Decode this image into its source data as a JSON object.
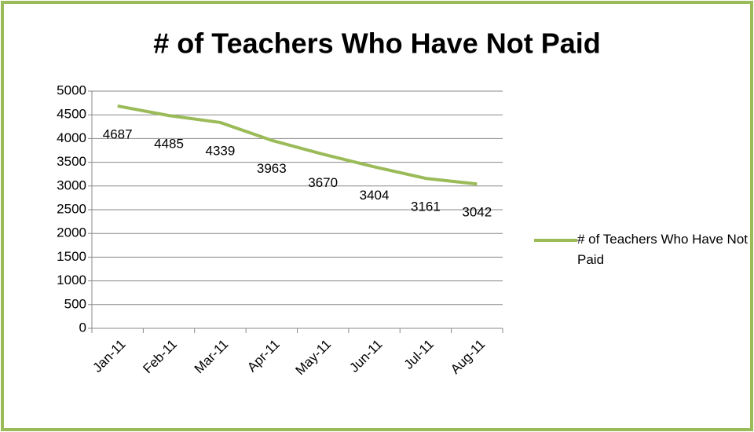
{
  "chart_data": {
    "type": "line",
    "title": "# of Teachers Who Have Not Paid",
    "categories": [
      "Jan-11",
      "Feb-11",
      "Mar-11",
      "Apr-11",
      "May-11",
      "Jun-11",
      "Jul-11",
      "Aug-11"
    ],
    "series": [
      {
        "name": "# of Teachers Who Have Not Paid",
        "color": "#9bbb59",
        "values": [
          4687,
          4485,
          4339,
          3963,
          3670,
          3404,
          3161,
          3042
        ]
      }
    ],
    "ylim": [
      0,
      5000
    ],
    "yticks": [
      0,
      500,
      1000,
      1500,
      2000,
      2500,
      3000,
      3500,
      4000,
      4500,
      5000
    ],
    "grid": true,
    "legend": "right",
    "data_labels": true
  }
}
